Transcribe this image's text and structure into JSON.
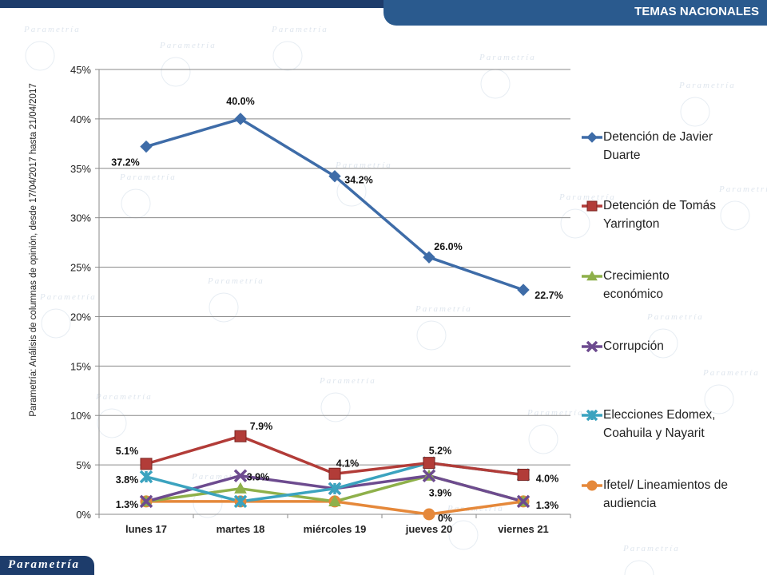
{
  "header": {
    "title": "TEMAS NACIONALES"
  },
  "side_label": "Parametría: Análisis de columnas de opinión, desde 17/04/2017 hasta 21/04/2017",
  "footer": {
    "logo_text": "Parametría"
  },
  "watermark": {
    "text": "Parametría"
  },
  "colors": {
    "header_dark": "#1d3c6b",
    "header_tab": "#2a5a8e"
  },
  "chart_data": {
    "type": "line",
    "categories": [
      "lunes 17",
      "martes 18",
      "miércoles 19",
      "jueves 20",
      "viernes 21"
    ],
    "ylim": [
      0,
      45
    ],
    "yticks": [
      0,
      5,
      10,
      15,
      20,
      25,
      30,
      35,
      40,
      45
    ],
    "ytick_labels": [
      "0%",
      "5%",
      "10%",
      "15%",
      "20%",
      "25%",
      "30%",
      "35%",
      "40%",
      "45%"
    ],
    "grid": true,
    "legend_position": "right",
    "series": [
      {
        "name": "Detención de Javier Duarte",
        "legend_lines": [
          "Detención de Javier",
          "Duarte"
        ],
        "color": "#3e6ca8",
        "marker": "diamond",
        "values": [
          37.2,
          40.0,
          34.2,
          26.0,
          22.7
        ],
        "labels": [
          "37.2%",
          "40.0%",
          "34.2%",
          "26.0%",
          "22.7%"
        ]
      },
      {
        "name": "Detención de Tomás Yarrington",
        "legend_lines": [
          "Detención de Tomás",
          "Yarrington"
        ],
        "color": "#b23c38",
        "marker": "square",
        "values": [
          5.1,
          7.9,
          4.1,
          5.2,
          4.0
        ],
        "labels": [
          "5.1%",
          "7.9%",
          "4.1%",
          "5.2%",
          "4.0%"
        ]
      },
      {
        "name": "Crecimiento económico",
        "legend_lines": [
          "Crecimiento",
          "económico"
        ],
        "color": "#8eb04a",
        "marker": "triangle",
        "values": [
          1.3,
          2.6,
          1.3,
          3.9,
          1.3
        ],
        "labels": [
          "",
          "",
          "",
          "",
          ""
        ]
      },
      {
        "name": "Corrupción",
        "legend_lines": [
          "Corrupción"
        ],
        "color": "#6d4b8f",
        "marker": "x",
        "values": [
          1.3,
          3.9,
          2.6,
          3.9,
          1.3
        ],
        "labels": [
          "",
          "3.9%",
          "",
          "3.9%",
          "1.3%"
        ]
      },
      {
        "name": "Elecciones Edomex, Coahuila y Nayarit",
        "legend_lines": [
          "Elecciones Edomex,",
          "Coahuila y Nayarit"
        ],
        "color": "#3ba3bf",
        "marker": "star",
        "values": [
          3.8,
          1.3,
          2.6,
          5.2,
          4.0
        ],
        "labels": [
          "3.8%",
          "",
          "",
          "",
          ""
        ]
      },
      {
        "name": "Ifetel/ Lineamientos de audiencia",
        "legend_lines": [
          "Ifetel/ Lineamientos de",
          "audiencia"
        ],
        "color": "#e5883a",
        "marker": "circle",
        "values": [
          1.3,
          1.3,
          1.3,
          0,
          1.3
        ],
        "labels": [
          "1.3%",
          "",
          "",
          "0%",
          ""
        ]
      }
    ]
  }
}
